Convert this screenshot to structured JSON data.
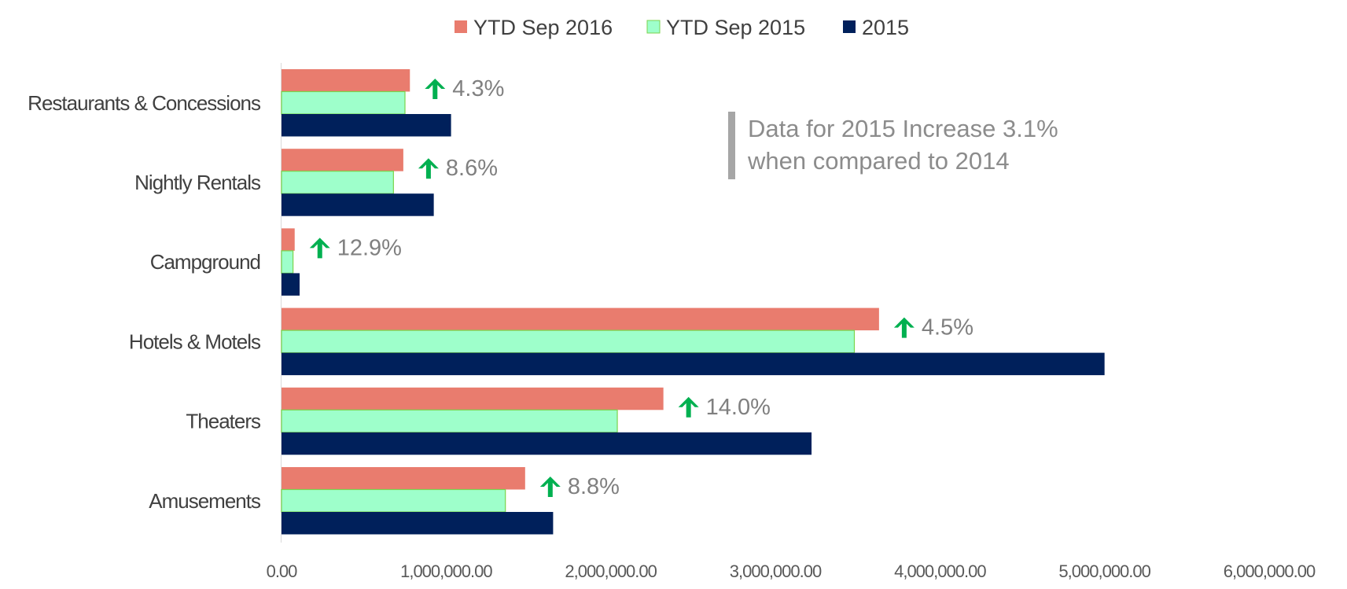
{
  "chart_data": {
    "type": "bar",
    "orientation": "horizontal",
    "categories": [
      "Restaurants & Concessions",
      "Nightly Rentals",
      "Campground",
      "Hotels & Motels",
      "Theaters",
      "Amusements"
    ],
    "series": [
      {
        "name": "YTD Sep 2016",
        "color": "#E97C6E",
        "values": [
          780000,
          740000,
          80000,
          3630000,
          2320000,
          1480000
        ]
      },
      {
        "name": "YTD Sep 2015",
        "color": "#9EFFCB",
        "values": [
          750000,
          680000,
          70000,
          3480000,
          2040000,
          1360000
        ]
      },
      {
        "name": "2015",
        "color": "#00205B",
        "values": [
          1030000,
          925000,
          110000,
          5000000,
          3220000,
          1650000
        ]
      }
    ],
    "change_labels": [
      "4.3%",
      "8.6%",
      "12.9%",
      "4.5%",
      "14.0%",
      "8.8%"
    ],
    "change_icon": "up-arrow-icon",
    "change_color": "#00B050",
    "xlim": [
      0,
      6000000
    ],
    "xticks": [
      "0.00",
      "1,000,000.00",
      "2,000,000.00",
      "3,000,000.00",
      "4,000,000.00",
      "5,000,000.00",
      "6,000,000.00"
    ],
    "annotation": [
      "Data for 2015 Increase 3.1%",
      "when compared to 2014"
    ],
    "legend_position": "top",
    "grid": false
  }
}
